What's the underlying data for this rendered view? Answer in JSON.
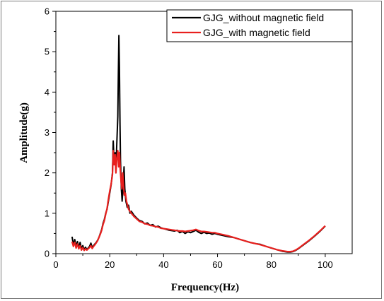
{
  "chart_data": {
    "type": "line",
    "title": "",
    "xlabel": "Frequency(Hz)",
    "ylabel": "Amplitude(g)",
    "xlim": [
      0,
      110
    ],
    "ylim": [
      0,
      6
    ],
    "x_ticks": [
      0,
      20,
      40,
      60,
      80,
      100
    ],
    "y_ticks": [
      0,
      1,
      2,
      3,
      4,
      5,
      6
    ],
    "legend_position": "top-right",
    "grid": false,
    "series": [
      {
        "name": "GJG_without magnetic field",
        "color": "#000000",
        "points": [
          [
            6.0,
            0.42
          ],
          [
            6.5,
            0.22
          ],
          [
            7.0,
            0.35
          ],
          [
            7.5,
            0.18
          ],
          [
            8.0,
            0.3
          ],
          [
            8.5,
            0.15
          ],
          [
            9.0,
            0.28
          ],
          [
            9.5,
            0.12
          ],
          [
            10.0,
            0.2
          ],
          [
            10.5,
            0.1
          ],
          [
            11.0,
            0.16
          ],
          [
            11.5,
            0.1
          ],
          [
            12.0,
            0.14
          ],
          [
            12.5,
            0.18
          ],
          [
            13.0,
            0.26
          ],
          [
            13.5,
            0.15
          ],
          [
            14.0,
            0.2
          ],
          [
            14.5,
            0.24
          ],
          [
            15.0,
            0.28
          ],
          [
            15.5,
            0.33
          ],
          [
            16.0,
            0.4
          ],
          [
            16.5,
            0.5
          ],
          [
            17.0,
            0.6
          ],
          [
            17.5,
            0.75
          ],
          [
            18.0,
            0.85
          ],
          [
            18.5,
            1.0
          ],
          [
            19.0,
            1.1
          ],
          [
            19.5,
            1.3
          ],
          [
            20.0,
            1.5
          ],
          [
            20.5,
            1.7
          ],
          [
            21.0,
            2.0
          ],
          [
            21.3,
            2.79
          ],
          [
            21.6,
            2.3
          ],
          [
            22.0,
            2.5
          ],
          [
            22.3,
            2.1
          ],
          [
            22.6,
            2.7
          ],
          [
            23.0,
            3.4
          ],
          [
            23.2,
            4.5
          ],
          [
            23.4,
            5.4
          ],
          [
            23.6,
            4.6
          ],
          [
            23.8,
            3.2
          ],
          [
            24.0,
            2.3
          ],
          [
            24.3,
            1.6
          ],
          [
            24.6,
            1.3
          ],
          [
            25.0,
            1.7
          ],
          [
            25.3,
            2.15
          ],
          [
            25.6,
            1.6
          ],
          [
            26.0,
            1.3
          ],
          [
            26.5,
            1.15
          ],
          [
            27.0,
            1.2
          ],
          [
            27.5,
            1.0
          ],
          [
            28.0,
            1.05
          ],
          [
            29.0,
            0.95
          ],
          [
            30.0,
            0.88
          ],
          [
            31.0,
            0.82
          ],
          [
            32.0,
            0.8
          ],
          [
            33.0,
            0.74
          ],
          [
            34.0,
            0.76
          ],
          [
            35.0,
            0.7
          ],
          [
            36.0,
            0.72
          ],
          [
            37.0,
            0.66
          ],
          [
            38.0,
            0.68
          ],
          [
            39.0,
            0.64
          ],
          [
            40.0,
            0.62
          ],
          [
            41.0,
            0.6
          ],
          [
            42.0,
            0.58
          ],
          [
            43.0,
            0.57
          ],
          [
            44.0,
            0.56
          ],
          [
            45.0,
            0.58
          ],
          [
            46.0,
            0.52
          ],
          [
            47.0,
            0.55
          ],
          [
            48.0,
            0.5
          ],
          [
            49.0,
            0.54
          ],
          [
            50.0,
            0.52
          ],
          [
            51.0,
            0.55
          ],
          [
            52.0,
            0.58
          ],
          [
            53.0,
            0.53
          ],
          [
            54.0,
            0.5
          ],
          [
            55.0,
            0.53
          ],
          [
            56.0,
            0.5
          ],
          [
            57.0,
            0.51
          ],
          [
            58.0,
            0.48
          ],
          [
            59.0,
            0.5
          ],
          [
            60.0,
            0.48
          ],
          [
            62.0,
            0.45
          ],
          [
            64.0,
            0.42
          ],
          [
            66.0,
            0.4
          ],
          [
            68.0,
            0.36
          ],
          [
            70.0,
            0.32
          ],
          [
            72.0,
            0.28
          ],
          [
            74.0,
            0.25
          ],
          [
            76.0,
            0.23
          ],
          [
            78.0,
            0.18
          ],
          [
            80.0,
            0.14
          ],
          [
            82.0,
            0.1
          ],
          [
            84.0,
            0.06
          ],
          [
            86.0,
            0.04
          ],
          [
            87.0,
            0.04
          ],
          [
            88.0,
            0.05
          ],
          [
            89.0,
            0.08
          ],
          [
            90.0,
            0.12
          ],
          [
            92.0,
            0.22
          ],
          [
            94.0,
            0.32
          ],
          [
            96.0,
            0.43
          ],
          [
            98.0,
            0.55
          ],
          [
            100.0,
            0.68
          ]
        ]
      },
      {
        "name": "GJG_with magnetic field",
        "color": "#e8201e",
        "points": [
          [
            6.0,
            0.3
          ],
          [
            6.5,
            0.18
          ],
          [
            7.0,
            0.28
          ],
          [
            7.5,
            0.14
          ],
          [
            8.0,
            0.24
          ],
          [
            8.5,
            0.12
          ],
          [
            9.0,
            0.2
          ],
          [
            9.5,
            0.09
          ],
          [
            10.0,
            0.15
          ],
          [
            10.5,
            0.08
          ],
          [
            11.0,
            0.12
          ],
          [
            11.5,
            0.09
          ],
          [
            12.0,
            0.12
          ],
          [
            12.5,
            0.15
          ],
          [
            13.0,
            0.2
          ],
          [
            13.5,
            0.13
          ],
          [
            14.0,
            0.18
          ],
          [
            14.5,
            0.22
          ],
          [
            15.0,
            0.27
          ],
          [
            15.5,
            0.32
          ],
          [
            16.0,
            0.4
          ],
          [
            16.5,
            0.48
          ],
          [
            17.0,
            0.58
          ],
          [
            17.5,
            0.72
          ],
          [
            18.0,
            0.82
          ],
          [
            18.5,
            0.98
          ],
          [
            19.0,
            1.12
          ],
          [
            19.5,
            1.35
          ],
          [
            20.0,
            1.55
          ],
          [
            20.5,
            1.72
          ],
          [
            21.0,
            1.95
          ],
          [
            21.3,
            2.55
          ],
          [
            21.6,
            2.2
          ],
          [
            22.0,
            2.45
          ],
          [
            22.3,
            2.0
          ],
          [
            22.6,
            2.35
          ],
          [
            23.0,
            2.55
          ],
          [
            23.3,
            2.15
          ],
          [
            23.6,
            2.5
          ],
          [
            23.9,
            2.1
          ],
          [
            24.2,
            1.8
          ],
          [
            24.5,
            1.6
          ],
          [
            24.8,
            2.0
          ],
          [
            25.1,
            1.7
          ],
          [
            25.4,
            1.45
          ],
          [
            25.8,
            1.5
          ],
          [
            26.2,
            1.3
          ],
          [
            26.6,
            1.2
          ],
          [
            27.0,
            1.1
          ],
          [
            27.5,
            1.05
          ],
          [
            28.0,
            1.0
          ],
          [
            29.0,
            0.92
          ],
          [
            30.0,
            0.86
          ],
          [
            31.0,
            0.8
          ],
          [
            32.0,
            0.78
          ],
          [
            33.0,
            0.74
          ],
          [
            34.0,
            0.73
          ],
          [
            35.0,
            0.7
          ],
          [
            36.0,
            0.69
          ],
          [
            37.0,
            0.67
          ],
          [
            38.0,
            0.66
          ],
          [
            39.0,
            0.63
          ],
          [
            40.0,
            0.62
          ],
          [
            41.0,
            0.61
          ],
          [
            42.0,
            0.6
          ],
          [
            43.0,
            0.59
          ],
          [
            44.0,
            0.58
          ],
          [
            45.0,
            0.57
          ],
          [
            46.0,
            0.56
          ],
          [
            47.0,
            0.56
          ],
          [
            48.0,
            0.55
          ],
          [
            49.0,
            0.56
          ],
          [
            50.0,
            0.57
          ],
          [
            51.0,
            0.58
          ],
          [
            52.0,
            0.6
          ],
          [
            53.0,
            0.57
          ],
          [
            54.0,
            0.55
          ],
          [
            55.0,
            0.55
          ],
          [
            56.0,
            0.54
          ],
          [
            57.0,
            0.53
          ],
          [
            58.0,
            0.52
          ],
          [
            59.0,
            0.52
          ],
          [
            60.0,
            0.5
          ],
          [
            62.0,
            0.47
          ],
          [
            64.0,
            0.44
          ],
          [
            66.0,
            0.4
          ],
          [
            68.0,
            0.36
          ],
          [
            70.0,
            0.32
          ],
          [
            72.0,
            0.28
          ],
          [
            74.0,
            0.25
          ],
          [
            76.0,
            0.22
          ],
          [
            78.0,
            0.18
          ],
          [
            80.0,
            0.14
          ],
          [
            82.0,
            0.1
          ],
          [
            84.0,
            0.07
          ],
          [
            86.0,
            0.05
          ],
          [
            87.0,
            0.05
          ],
          [
            88.0,
            0.06
          ],
          [
            89.0,
            0.09
          ],
          [
            90.0,
            0.13
          ],
          [
            92.0,
            0.23
          ],
          [
            94.0,
            0.33
          ],
          [
            96.0,
            0.44
          ],
          [
            98.0,
            0.56
          ],
          [
            100.0,
            0.69
          ]
        ]
      }
    ]
  }
}
